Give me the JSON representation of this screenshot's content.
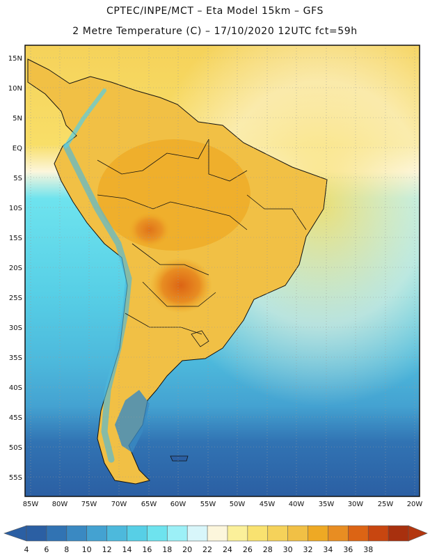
{
  "header": {
    "line1": "CPTEC/INPE/MCT –  Eta Model 15km – GFS",
    "line2": "2 Metre Temperature (C) – 17/10/2020 12UTC fct=59h"
  },
  "map": {
    "lat_labels": [
      "15N",
      "10N",
      "5N",
      "EQ",
      "5S",
      "10S",
      "15S",
      "20S",
      "25S",
      "30S",
      "35S",
      "40S",
      "45S",
      "50S",
      "55S"
    ],
    "lon_labels": [
      "85W",
      "80W",
      "75W",
      "70W",
      "65W",
      "60W",
      "55W",
      "50W",
      "45W",
      "40W",
      "35W",
      "30W",
      "25W",
      "20W"
    ]
  },
  "colorbar": {
    "labels": [
      "4",
      "6",
      "8",
      "10",
      "12",
      "14",
      "16",
      "18",
      "20",
      "22",
      "24",
      "26",
      "28",
      "30",
      "32",
      "34",
      "36",
      "38"
    ],
    "colors": [
      "#2b5fa3",
      "#3173b3",
      "#3a89c2",
      "#44a2d1",
      "#4db9dc",
      "#57cfe6",
      "#6ee3ee",
      "#9cf0f7",
      "#d8f6fa",
      "#fcf6dc",
      "#fbf09a",
      "#f9e270",
      "#f5d25a",
      "#f1c045",
      "#eea924",
      "#e88d22",
      "#dc6414",
      "#c84610",
      "#a8300e"
    ],
    "low_color": "#2b5fa3",
    "high_color": "#b3360e"
  }
}
